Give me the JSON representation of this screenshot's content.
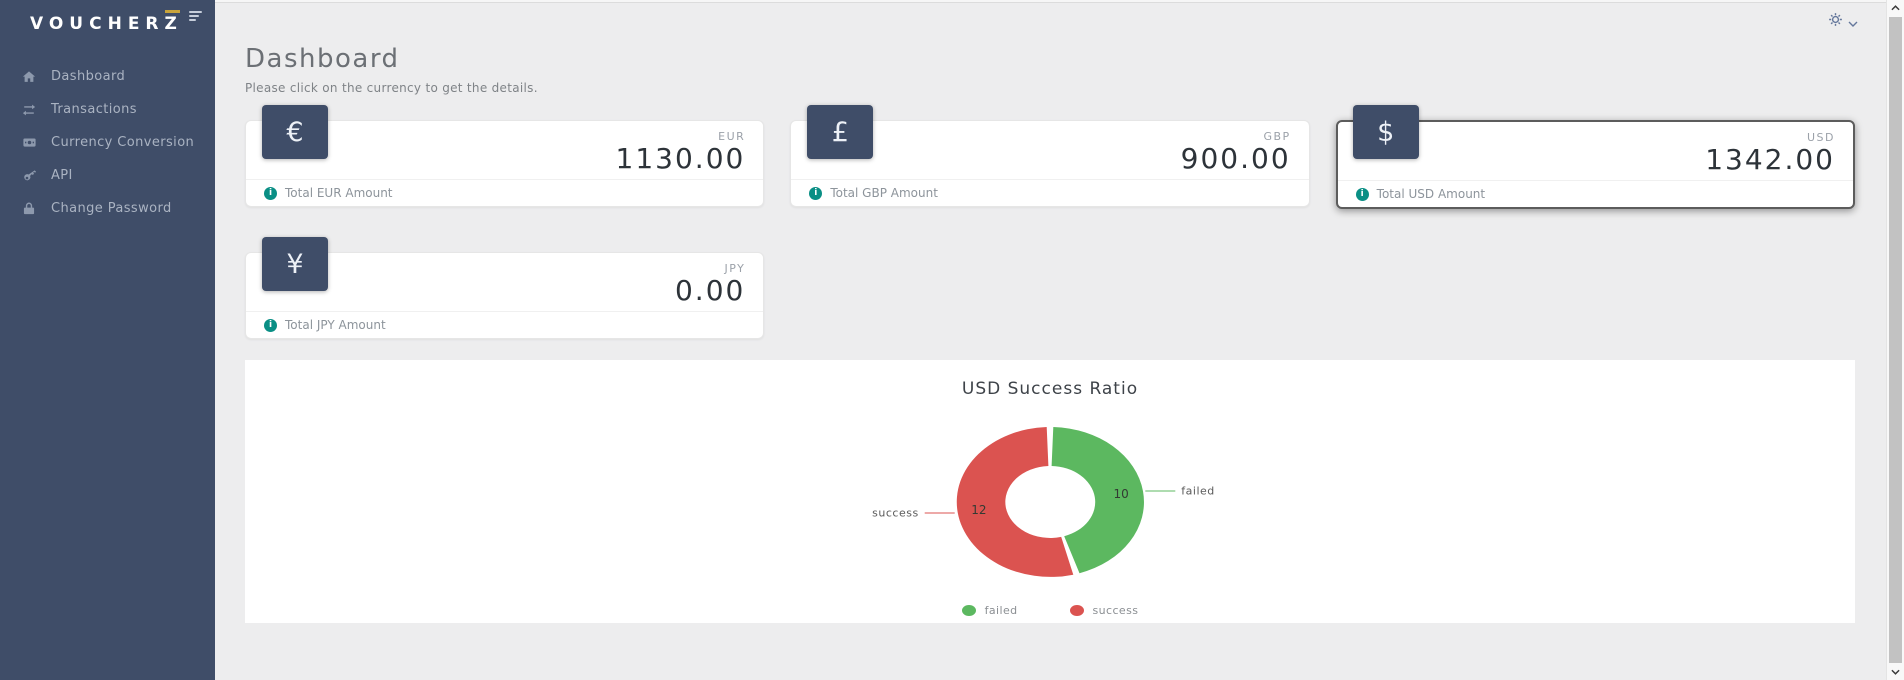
{
  "brand": {
    "name_main": "VOUCHER",
    "name_accent": "Z",
    "accent_color": "#C9A43B"
  },
  "colors": {
    "sidebar": "#3F4D68",
    "info_icon": "#0A8F85",
    "page_background": "#EDEDEE"
  },
  "sidebar": {
    "items": [
      {
        "label": "Dashboard",
        "icon": "home-icon"
      },
      {
        "label": "Transactions",
        "icon": "exchange-icon"
      },
      {
        "label": "Currency Conversion",
        "icon": "money-bill-icon"
      },
      {
        "label": "API",
        "icon": "key-icon"
      },
      {
        "label": "Change Password",
        "icon": "lock-icon"
      }
    ]
  },
  "topbar": {
    "settings_icon": "gear-icon",
    "dropdown_icon": "chevron-down-icon"
  },
  "header": {
    "title": "Dashboard",
    "subtitle": "Please click on the currency to get the details."
  },
  "cards": [
    {
      "currency": "EUR",
      "symbol": "€",
      "amount": "1130.00",
      "footer": "Total EUR Amount",
      "selected": false
    },
    {
      "currency": "GBP",
      "symbol": "£",
      "amount": "900.00",
      "footer": "Total GBP Amount",
      "selected": false
    },
    {
      "currency": "USD",
      "symbol": "$",
      "amount": "1342.00",
      "footer": "Total USD Amount",
      "selected": true
    },
    {
      "currency": "JPY",
      "symbol": "¥",
      "amount": "0.00",
      "footer": "Total JPY Amount",
      "selected": false
    }
  ],
  "chart_data": {
    "type": "pie",
    "variant": "donut",
    "title": "USD Success Ratio",
    "series": [
      {
        "name": "failed",
        "value": 10,
        "color": "#5CB860"
      },
      {
        "name": "success",
        "value": 12,
        "color": "#DB5350"
      }
    ],
    "total": 22,
    "start_angle": "top",
    "direction": "clockwise",
    "labels_inside_values": [
      10,
      12
    ],
    "legend_position": "bottom"
  }
}
